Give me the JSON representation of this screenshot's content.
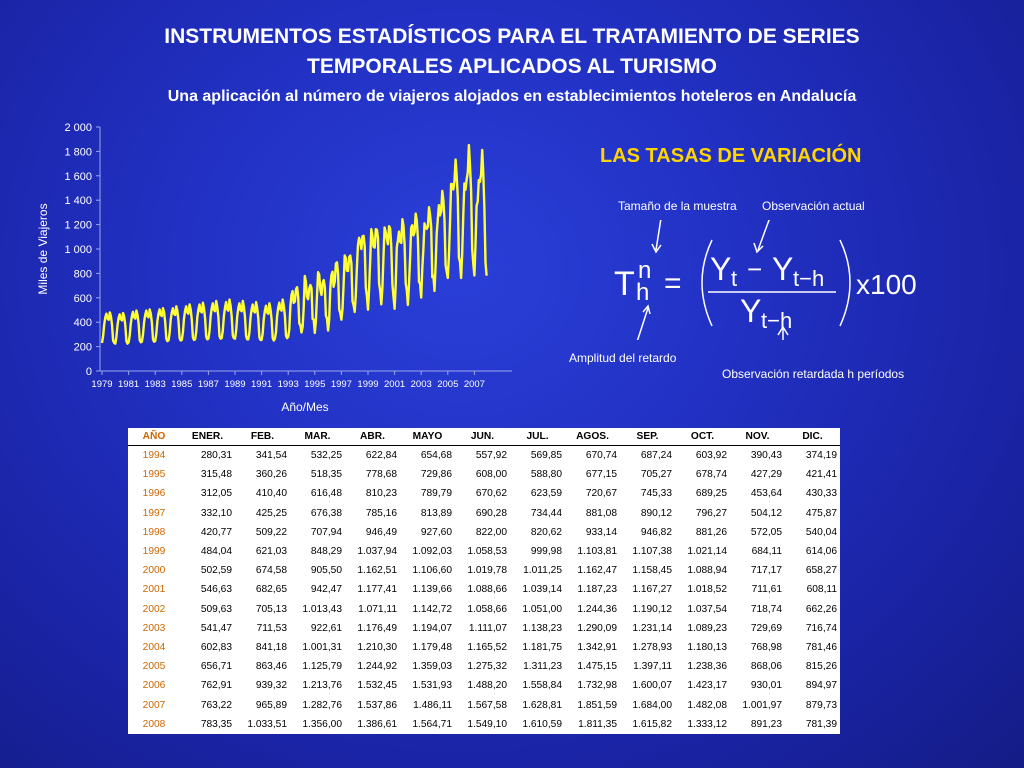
{
  "header": {
    "title_line1": "INSTRUMENTOS ESTADÍSTICOS PARA EL TRATAMIENTO DE SERIES",
    "title_line2": "TEMPORALES APLICADOS AL TURISMO",
    "subtitle": "Una aplicación al número de viajeros alojados en establecimientos hoteleros en Andalucía"
  },
  "colors": {
    "series": "#ffff33",
    "accent": "#ffd400",
    "year_text": "#cc6600"
  },
  "chart_data": {
    "type": "line",
    "ylabel": "Miles de Viajeros",
    "xlabel": "Año/Mes",
    "ylim": [
      0,
      2000
    ],
    "yticks": [
      "0",
      "200",
      "400",
      "600",
      "800",
      "1 000",
      "1 200",
      "1 400",
      "1 600",
      "1 800",
      "2 000"
    ],
    "xticks": [
      "1979",
      "1981",
      "1983",
      "1985",
      "1987",
      "1989",
      "1991",
      "1993",
      "1995",
      "1997",
      "1999",
      "2001",
      "2003",
      "2005",
      "2007"
    ],
    "x_start_year": 1979,
    "grid": false,
    "series": [
      {
        "values": [
          230,
          285,
          380,
          440,
          470,
          430,
          420,
          480,
          450,
          380,
          250,
          230,
          225,
          280,
          375,
          435,
          465,
          425,
          415,
          475,
          445,
          375,
          245,
          225,
          235,
          290,
          390,
          450,
          485,
          440,
          430,
          495,
          460,
          390,
          255,
          235,
          240,
          300,
          400,
          460,
          495,
          450,
          440,
          505,
          470,
          395,
          260,
          240,
          245,
          305,
          410,
          470,
          505,
          460,
          450,
          515,
          480,
          400,
          265,
          245,
          250,
          310,
          420,
          480,
          515,
          470,
          460,
          530,
          490,
          410,
          270,
          250,
          255,
          315,
          430,
          495,
          530,
          480,
          470,
          545,
          505,
          420,
          275,
          255,
          260,
          320,
          440,
          505,
          545,
          490,
          480,
          560,
          515,
          430,
          280,
          260,
          265,
          325,
          445,
          515,
          555,
          500,
          490,
          575,
          525,
          440,
          285,
          265,
          270,
          330,
          450,
          520,
          565,
          505,
          495,
          585,
          535,
          445,
          290,
          270,
          265,
          325,
          445,
          515,
          555,
          500,
          490,
          575,
          525,
          440,
          285,
          260,
          260,
          315,
          435,
          505,
          545,
          490,
          480,
          565,
          515,
          430,
          275,
          255,
          255,
          310,
          430,
          495,
          535,
          480,
          470,
          555,
          505,
          425,
          270,
          250,
          265,
          320,
          450,
          520,
          560,
          505,
          495,
          585,
          535,
          450,
          290,
          270,
          280,
          341.54,
          532.25,
          622.84,
          654.68,
          557.92,
          569.85,
          670.74,
          687.24,
          603.92,
          390.43,
          374.19,
          315.48,
          360.26,
          518.35,
          778.68,
          729.86,
          608.0,
          588.8,
          677.15,
          705.27,
          678.74,
          427.29,
          421.41,
          312.05,
          410.4,
          616.48,
          810.23,
          789.79,
          670.62,
          623.59,
          720.67,
          745.33,
          689.25,
          453.64,
          430.33,
          332.1,
          425.25,
          676.38,
          785.16,
          813.89,
          690.28,
          734.44,
          881.08,
          890.12,
          796.27,
          504.12,
          475.87,
          420.77,
          509.22,
          707.94,
          946.49,
          927.6,
          822.0,
          820.62,
          933.14,
          946.82,
          881.26,
          572.05,
          540.04,
          484.04,
          621.03,
          848.29,
          1037.94,
          1092.03,
          1058.53,
          999.98,
          1103.81,
          1107.38,
          1021.14,
          684.11,
          614.06,
          502.59,
          674.58,
          905.5,
          1162.51,
          1106.6,
          1019.78,
          1011.25,
          1162.47,
          1158.45,
          1088.94,
          717.17,
          658.27,
          546.63,
          682.65,
          942.47,
          1177.41,
          1139.66,
          1088.66,
          1039.14,
          1187.23,
          1167.27,
          1018.52,
          711.61,
          608.11,
          509.63,
          705.13,
          1013.43,
          1071.11,
          1142.72,
          1058.66,
          1051.0,
          1244.36,
          1190.12,
          1037.54,
          718.74,
          662.26,
          541.47,
          711.53,
          922.61,
          1176.49,
          1194.07,
          1111.07,
          1138.23,
          1290.09,
          1231.14,
          1089.23,
          729.69,
          716.74,
          602.83,
          841.18,
          1001.31,
          1210.3,
          1179.48,
          1165.52,
          1181.75,
          1342.91,
          1278.93,
          1180.13,
          768.98,
          781.46,
          656.71,
          863.46,
          1125.79,
          1244.92,
          1359.03,
          1275.32,
          1311.23,
          1475.15,
          1397.11,
          1238.36,
          868.06,
          815.26,
          762.91,
          939.32,
          1213.76,
          1532.45,
          1531.93,
          1488.2,
          1558.84,
          1732.98,
          1600.07,
          1423.17,
          930.01,
          894.97,
          763.22,
          965.89,
          1282.76,
          1537.86,
          1486.11,
          1567.58,
          1628.81,
          1851.59,
          1684.0,
          1482.08,
          1001.97,
          879.73,
          783.35,
          1033.51,
          1356.0,
          1386.61,
          1564.71,
          1549.1,
          1610.59,
          1811.35,
          1615.82,
          1333.12,
          891.23,
          781.39
        ]
      }
    ]
  },
  "formula": {
    "heading": "LAS TASAS DE VARIACIÓN",
    "label_sample_size": "Tamaño de la muestra",
    "label_current_obs": "Observación actual",
    "label_lag": "Amplitud del retardo",
    "label_lagged_obs": "Observación retardada h períodos",
    "T": "T",
    "n": "n",
    "h": "h",
    "equals": "=",
    "Y": "Y",
    "t": "t",
    "minus": "−",
    "t_minus_h": "t−h",
    "times100": "x100"
  },
  "table": {
    "headers": [
      "AÑO",
      "ENER.",
      "FEB.",
      "MAR.",
      "ABR.",
      "MAYO",
      "JUN.",
      "JUL.",
      "AGOS.",
      "SEP.",
      "OCT.",
      "NOV.",
      "DIC."
    ],
    "rows": [
      [
        "1994",
        "280,31",
        "341,54",
        "532,25",
        "622,84",
        "654,68",
        "557,92",
        "569,85",
        "670,74",
        "687,24",
        "603,92",
        "390,43",
        "374,19"
      ],
      [
        "1995",
        "315,48",
        "360,26",
        "518,35",
        "778,68",
        "729,86",
        "608,00",
        "588,80",
        "677,15",
        "705,27",
        "678,74",
        "427,29",
        "421,41"
      ],
      [
        "1996",
        "312,05",
        "410,40",
        "616,48",
        "810,23",
        "789,79",
        "670,62",
        "623,59",
        "720,67",
        "745,33",
        "689,25",
        "453,64",
        "430,33"
      ],
      [
        "1997",
        "332,10",
        "425,25",
        "676,38",
        "785,16",
        "813,89",
        "690,28",
        "734,44",
        "881,08",
        "890,12",
        "796,27",
        "504,12",
        "475,87"
      ],
      [
        "1998",
        "420,77",
        "509,22",
        "707,94",
        "946,49",
        "927,60",
        "822,00",
        "820,62",
        "933,14",
        "946,82",
        "881,26",
        "572,05",
        "540,04"
      ],
      [
        "1999",
        "484,04",
        "621,03",
        "848,29",
        "1.037,94",
        "1.092,03",
        "1.058,53",
        "999,98",
        "1.103,81",
        "1.107,38",
        "1.021,14",
        "684,11",
        "614,06"
      ],
      [
        "2000",
        "502,59",
        "674,58",
        "905,50",
        "1.162,51",
        "1.106,60",
        "1.019,78",
        "1.011,25",
        "1.162,47",
        "1.158,45",
        "1.088,94",
        "717,17",
        "658,27"
      ],
      [
        "2001",
        "546,63",
        "682,65",
        "942,47",
        "1.177,41",
        "1.139,66",
        "1.088,66",
        "1.039,14",
        "1.187,23",
        "1.167,27",
        "1.018,52",
        "711,61",
        "608,11"
      ],
      [
        "2002",
        "509,63",
        "705,13",
        "1.013,43",
        "1.071,11",
        "1.142,72",
        "1.058,66",
        "1.051,00",
        "1.244,36",
        "1.190,12",
        "1.037,54",
        "718,74",
        "662,26"
      ],
      [
        "2003",
        "541,47",
        "711,53",
        "922,61",
        "1.176,49",
        "1.194,07",
        "1.111,07",
        "1.138,23",
        "1.290,09",
        "1.231,14",
        "1.089,23",
        "729,69",
        "716,74"
      ],
      [
        "2004",
        "602,83",
        "841,18",
        "1.001,31",
        "1.210,30",
        "1.179,48",
        "1.165,52",
        "1.181,75",
        "1.342,91",
        "1.278,93",
        "1.180,13",
        "768,98",
        "781,46"
      ],
      [
        "2005",
        "656,71",
        "863,46",
        "1.125,79",
        "1.244,92",
        "1.359,03",
        "1.275,32",
        "1.311,23",
        "1.475,15",
        "1.397,11",
        "1.238,36",
        "868,06",
        "815,26"
      ],
      [
        "2006",
        "762,91",
        "939,32",
        "1.213,76",
        "1.532,45",
        "1.531,93",
        "1.488,20",
        "1.558,84",
        "1.732,98",
        "1.600,07",
        "1.423,17",
        "930,01",
        "894,97"
      ],
      [
        "2007",
        "763,22",
        "965,89",
        "1.282,76",
        "1.537,86",
        "1.486,11",
        "1.567,58",
        "1.628,81",
        "1.851,59",
        "1.684,00",
        "1.482,08",
        "1.001,97",
        "879,73"
      ],
      [
        "2008",
        "783,35",
        "1.033,51",
        "1.356,00",
        "1.386,61",
        "1.564,71",
        "1.549,10",
        "1.610,59",
        "1.811,35",
        "1.615,82",
        "1.333,12",
        "891,23",
        "781,39"
      ]
    ]
  }
}
